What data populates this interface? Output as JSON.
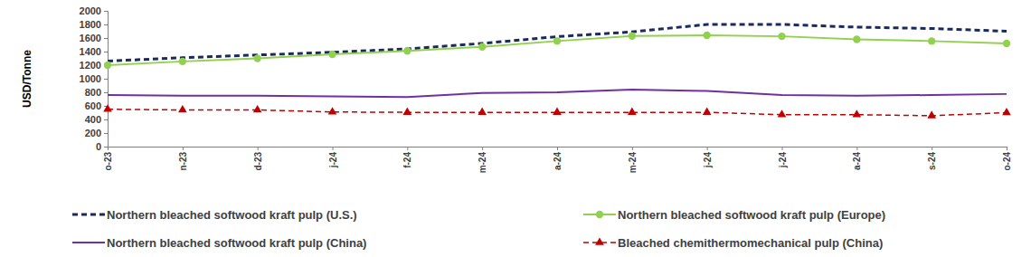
{
  "chart_data": {
    "type": "line",
    "y_label": "USD/Tonne",
    "categories": [
      "o-23",
      "n-23",
      "d-23",
      "j-24",
      "f-24",
      "m-24",
      "a-24",
      "m-24",
      "j-24",
      "j-24",
      "a-24",
      "s-24",
      "o-24"
    ],
    "series": [
      {
        "name": "Northern bleached softwood kraft pulp (U.S.)",
        "color": "#1b2a5c",
        "line_style": "dashed",
        "marker": "none",
        "values": [
          1260,
          1310,
          1350,
          1390,
          1440,
          1520,
          1620,
          1690,
          1800,
          1800,
          1760,
          1740,
          1700
        ]
      },
      {
        "name": "Northern bleached softwood kraft pulp (Europe)",
        "color": "#92d050",
        "line_style": "solid",
        "marker": "circle",
        "values": [
          1200,
          1255,
          1300,
          1360,
          1410,
          1470,
          1555,
          1630,
          1640,
          1625,
          1580,
          1555,
          1520
        ]
      },
      {
        "name": "Northern bleached softwood kraft pulp (China)",
        "color": "#7030a0",
        "line_style": "solid",
        "marker": "none",
        "values": [
          760,
          750,
          750,
          740,
          730,
          790,
          800,
          840,
          820,
          760,
          750,
          760,
          775
        ]
      },
      {
        "name": "Bleached chemithermomechanical pulp (China)",
        "color": "#c00000",
        "line_style": "dashed",
        "marker": "triangle",
        "values": [
          550,
          540,
          540,
          510,
          505,
          505,
          505,
          505,
          505,
          470,
          470,
          455,
          500
        ]
      }
    ],
    "ylim": [
      0,
      2000
    ],
    "yticks": [
      0,
      200,
      400,
      600,
      800,
      1000,
      1200,
      1400,
      1600,
      1800,
      2000
    ],
    "grid": false,
    "legend": "bottom"
  }
}
